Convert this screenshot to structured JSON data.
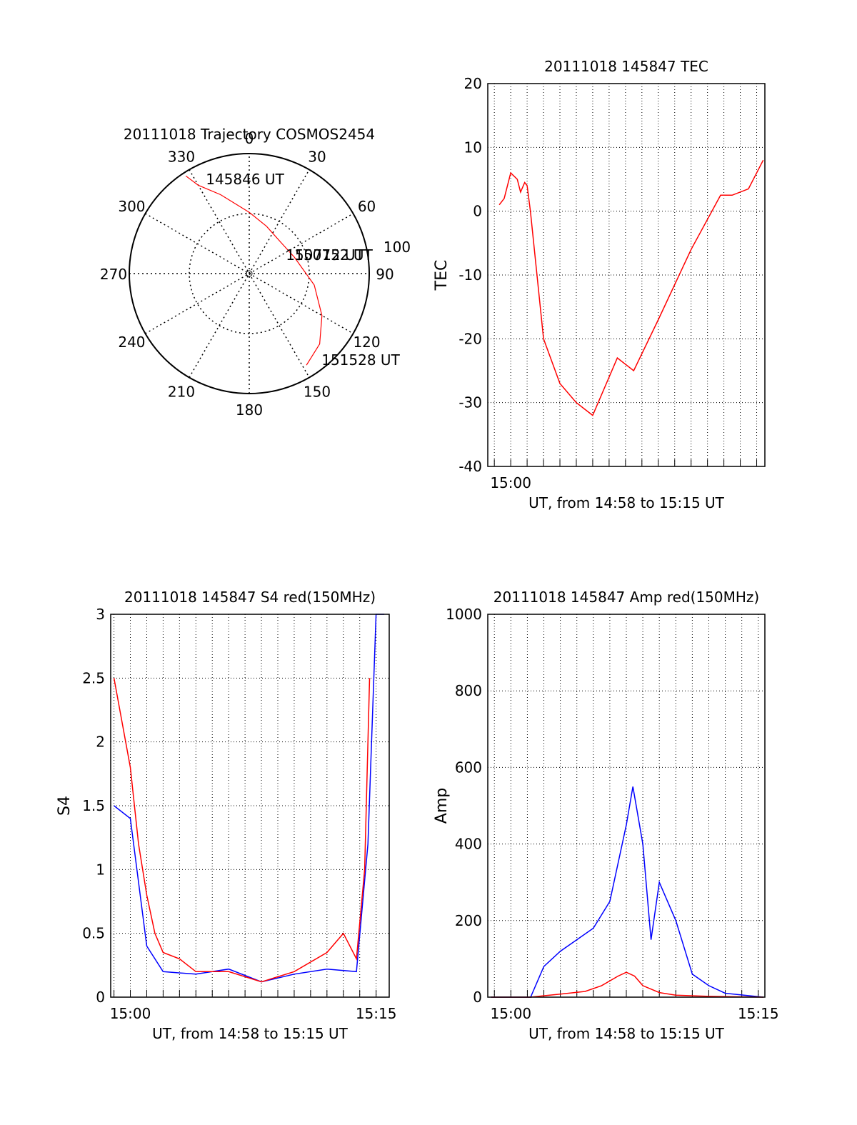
{
  "chart_data": [
    {
      "type": "polar",
      "title": "20111018 Trajectory COSMOS2454",
      "angle_labels": [
        "0",
        "30",
        "60",
        "90",
        "120",
        "150",
        "180",
        "210",
        "240",
        "270",
        "300",
        "330"
      ],
      "extra_labels": [
        "100"
      ],
      "point_labels": {
        "start": "145846 UT",
        "mid": "150712 UT",
        "mid2": "150752 UT",
        "end": "151528 UT"
      },
      "track": [
        {
          "az": 327,
          "r": 0.97
        },
        {
          "az": 330,
          "r": 0.85
        },
        {
          "az": 340,
          "r": 0.7
        },
        {
          "az": 0,
          "r": 0.51
        },
        {
          "az": 20,
          "r": 0.42
        },
        {
          "az": 45,
          "r": 0.37
        },
        {
          "az": 70,
          "r": 0.4
        },
        {
          "az": 100,
          "r": 0.55
        },
        {
          "az": 120,
          "r": 0.7
        },
        {
          "az": 135,
          "r": 0.83
        },
        {
          "az": 148,
          "r": 0.9
        }
      ],
      "line_color": "#ff0000"
    },
    {
      "type": "line",
      "title": "20111018 145847 TEC",
      "ylabel": "TEC",
      "xlabel": "UT, from 14:58 to 15:15 UT",
      "ylim": [
        -40,
        20
      ],
      "yticks": [
        "20",
        "10",
        "0",
        "-10",
        "-20",
        "-30",
        "-40"
      ],
      "xlim": [
        -1.4,
        15.5
      ],
      "xticks": [
        {
          "x": 0,
          "label": "15:00"
        }
      ],
      "series": [
        {
          "color": "#ff0000",
          "x": [
            -0.7,
            -0.4,
            0,
            0.4,
            0.6,
            0.85,
            1.0,
            1.2,
            2.0,
            3.0,
            4.0,
            5.0,
            6.5,
            7.5,
            9.0,
            11.0,
            12.8,
            13.5,
            14.5,
            15.4
          ],
          "y": [
            1,
            2,
            6,
            5,
            3,
            4.5,
            4,
            0,
            -20,
            -27,
            -30,
            -32,
            -23,
            -25,
            -17,
            -6,
            2.5,
            2.5,
            3.5,
            8
          ]
        }
      ]
    },
    {
      "type": "line",
      "title": "20111018 145847 S4 red(150MHz)",
      "ylabel": "S4",
      "xlabel": "UT, from 14:58 to 15:15 UT",
      "ylim": [
        0,
        3
      ],
      "yticks": [
        "3",
        "2.5",
        "2",
        "1.5",
        "1",
        "0.5",
        "0"
      ],
      "xlim": [
        -1.2,
        15.8
      ],
      "xticks": [
        {
          "x": 0,
          "label": "15:00"
        },
        {
          "x": 15,
          "label": "15:15"
        }
      ],
      "series": [
        {
          "color": "#0000ff",
          "x": [
            -1.0,
            0,
            0.5,
            1.0,
            2.0,
            4.0,
            6.0,
            8.0,
            10.0,
            12.0,
            13.8,
            14.5,
            15.0,
            15.5
          ],
          "y": [
            1.5,
            1.4,
            0.9,
            0.4,
            0.2,
            0.18,
            0.22,
            0.12,
            0.18,
            0.22,
            0.2,
            1.2,
            3.0,
            3.0
          ]
        },
        {
          "color": "#ff0000",
          "x": [
            -1.0,
            0,
            0.5,
            1.0,
            1.5,
            2.0,
            3.0,
            4.0,
            6.0,
            8.0,
            10.0,
            12.0,
            13.0,
            13.8,
            14.3,
            14.6
          ],
          "y": [
            2.5,
            1.8,
            1.2,
            0.8,
            0.5,
            0.35,
            0.3,
            0.2,
            0.2,
            0.12,
            0.2,
            0.35,
            0.5,
            0.3,
            1.0,
            2.5
          ]
        }
      ]
    },
    {
      "type": "line",
      "title": "20111018 145847 Amp red(150MHz)",
      "ylabel": "Amp",
      "xlabel": "UT, from 14:58 to 15:15 UT",
      "ylim": [
        0,
        1000
      ],
      "yticks": [
        "1000",
        "800",
        "600",
        "400",
        "200",
        "0"
      ],
      "xlim": [
        -1.4,
        15.4
      ],
      "xticks": [
        {
          "x": 0,
          "label": "15:00"
        },
        {
          "x": 15,
          "label": "15:15"
        }
      ],
      "series": [
        {
          "color": "#0000ff",
          "x": [
            -1.2,
            1.2,
            2.0,
            3.0,
            4.0,
            5.0,
            6.0,
            7.0,
            7.4,
            8.0,
            8.5,
            9.0,
            10.0,
            11.0,
            12.0,
            13.0,
            15.3
          ],
          "y": [
            0,
            0,
            80,
            120,
            150,
            180,
            250,
            450,
            550,
            400,
            150,
            300,
            200,
            60,
            30,
            10,
            0
          ]
        },
        {
          "color": "#ff0000",
          "x": [
            -1.2,
            1.2,
            3.0,
            4.5,
            5.5,
            6.5,
            7.0,
            7.5,
            8.0,
            9.0,
            10.0,
            12.0,
            15.3
          ],
          "y": [
            0,
            0,
            8,
            15,
            30,
            55,
            65,
            55,
            30,
            12,
            5,
            2,
            0
          ]
        }
      ]
    }
  ]
}
